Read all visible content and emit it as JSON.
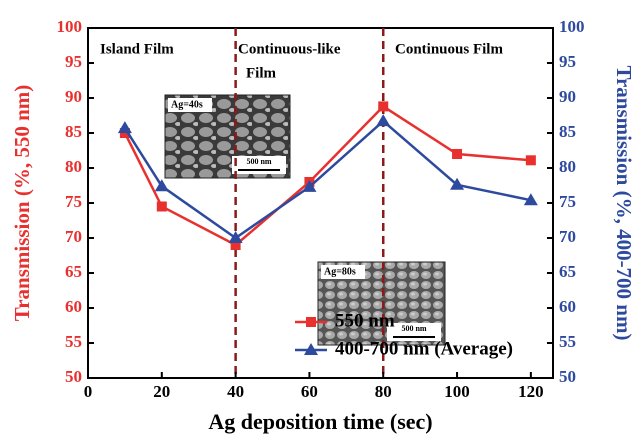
{
  "chart_data": {
    "type": "line",
    "xlabel": "Ag deposition time (sec)",
    "ylabel": "Transmission (%, 550 nm)",
    "y2label": "Transmission (%, 400-700 nm)",
    "x": [
      10,
      20,
      40,
      60,
      80,
      100,
      120
    ],
    "series": [
      {
        "name": "550 nm",
        "color": "#e8312f",
        "marker": "square",
        "values": [
          85,
          74.5,
          69,
          78,
          88.8,
          82,
          81.1
        ]
      },
      {
        "name": "400-700 nm (Average)",
        "color": "#2e4a9e",
        "marker": "triangle",
        "axis": "y2",
        "values": [
          85.7,
          77.4,
          70,
          77.3,
          86.7,
          77.6,
          75.4
        ]
      }
    ],
    "xlim": [
      0,
      126
    ],
    "xticks": [
      0,
      20,
      40,
      60,
      80,
      100,
      120
    ],
    "ylim": [
      50,
      100
    ],
    "yticks": [
      50,
      55,
      60,
      65,
      70,
      75,
      80,
      85,
      90,
      95,
      100
    ],
    "y2lim": [
      50,
      100
    ],
    "y2ticks": [
      50,
      55,
      60,
      65,
      70,
      75,
      80,
      85,
      90,
      95,
      100
    ],
    "vlines": [
      40,
      80
    ],
    "vline_color": "#8b1a1a",
    "annotations": [
      "Island Film",
      "Continuous-like",
      "Film",
      "Continuous Film"
    ],
    "insets": [
      {
        "label": "Ag=40s",
        "scale": "500 nm"
      },
      {
        "label": "Ag=80s",
        "scale": "500 nm"
      }
    ],
    "legend": "lower-center"
  }
}
